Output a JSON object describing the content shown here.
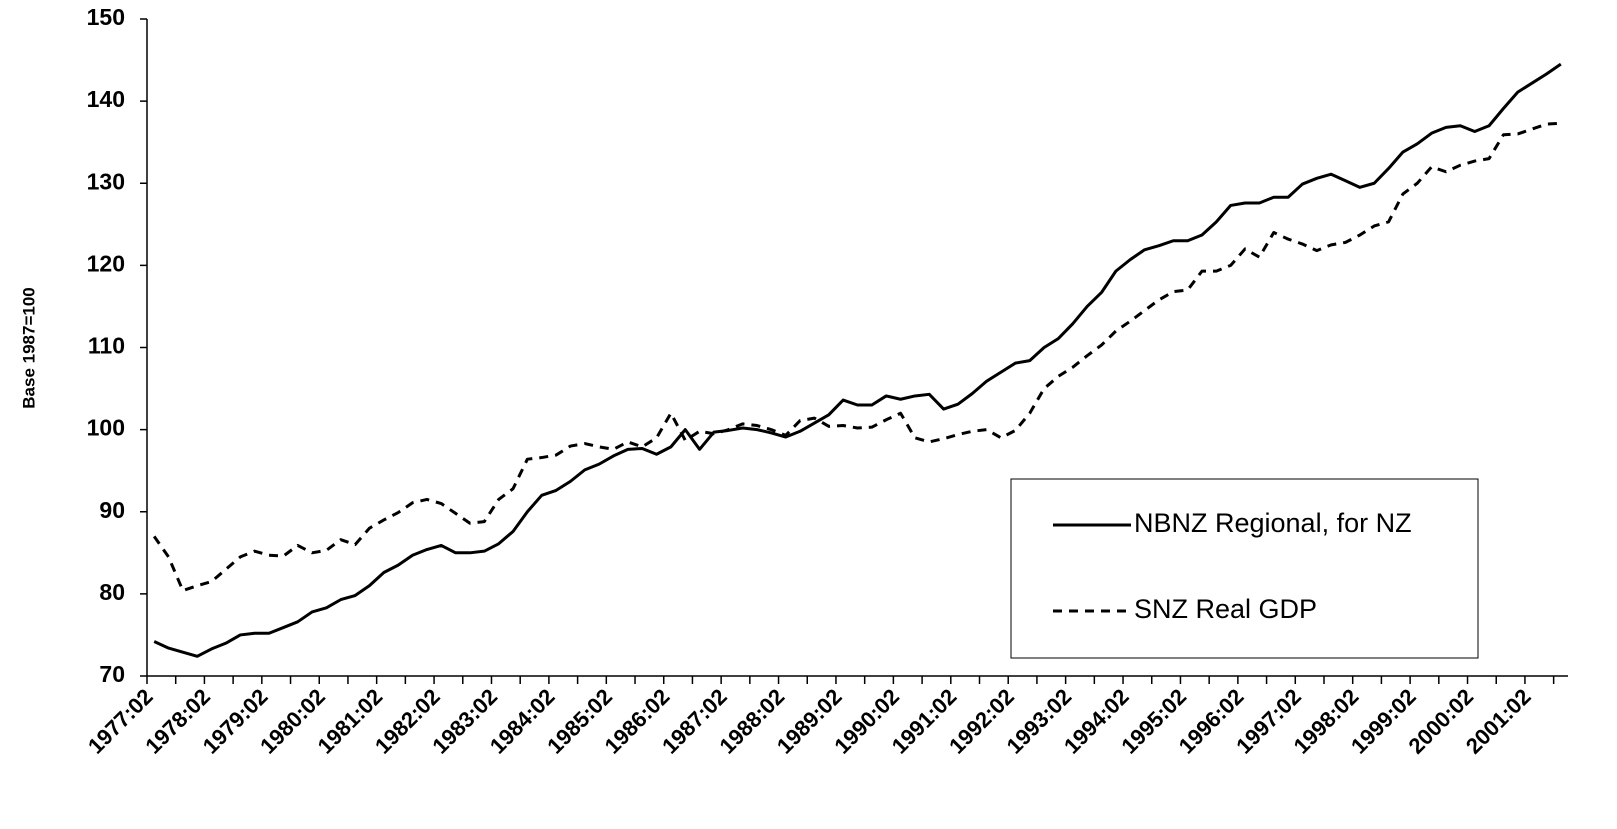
{
  "chart_data": {
    "type": "line",
    "y_label": "Base 1987=100",
    "categories": [
      "1977:02",
      null,
      null,
      null,
      "1978:02",
      null,
      null,
      null,
      "1979:02",
      null,
      null,
      null,
      "1980:02",
      null,
      null,
      null,
      "1981:02",
      null,
      null,
      null,
      "1982:02",
      null,
      null,
      null,
      "1983:02",
      null,
      null,
      null,
      "1984:02",
      null,
      null,
      null,
      "1985:02",
      null,
      null,
      null,
      "1986:02",
      null,
      null,
      null,
      "1987:02",
      null,
      null,
      null,
      "1988:02",
      null,
      null,
      null,
      "1989:02",
      null,
      null,
      null,
      "1990:02",
      null,
      null,
      null,
      "1991:02",
      null,
      null,
      null,
      "1992:02",
      null,
      null,
      null,
      "1993:02",
      null,
      null,
      null,
      "1994:02",
      null,
      null,
      null,
      "1995:02",
      null,
      null,
      null,
      "1996:02",
      null,
      null,
      null,
      "1997:02",
      null,
      null,
      null,
      "1998:02",
      null,
      null,
      null,
      "1999:02",
      null,
      null,
      null,
      "2000:02",
      null,
      null,
      null,
      "2001:02",
      null,
      null
    ],
    "series": [
      {
        "name": "NBNZ Regional, for NZ",
        "color": "#000000",
        "dash": false,
        "values": [
          74.2,
          73.4,
          72.9,
          72.4,
          73.3,
          74.0,
          75.0,
          75.2,
          75.2,
          75.9,
          76.6,
          77.8,
          78.3,
          79.3,
          79.8,
          81.0,
          82.6,
          83.5,
          84.7,
          85.4,
          85.9,
          85.0,
          85.0,
          85.2,
          86.1,
          87.6,
          90.0,
          92.0,
          92.6,
          93.7,
          95.1,
          95.8,
          96.8,
          97.6,
          97.7,
          97.0,
          97.9,
          100.0,
          97.6,
          99.7,
          99.9,
          100.2,
          100.0,
          99.6,
          99.1,
          99.8,
          100.8,
          101.8,
          103.6,
          103.0,
          103.0,
          104.1,
          103.7,
          104.1,
          104.3,
          102.5,
          103.1,
          104.4,
          105.9,
          107.0,
          108.1,
          108.4,
          110.0,
          111.1,
          112.9,
          115.0,
          116.7,
          119.3,
          120.7,
          121.9,
          122.4,
          123.0,
          123.0,
          123.7,
          125.3,
          127.3,
          127.6,
          127.6,
          128.3,
          128.3,
          129.9,
          130.6,
          131.1,
          130.3,
          129.5,
          130.0,
          131.8,
          133.8,
          134.8,
          136.1,
          136.8,
          137.0,
          136.3,
          137.0,
          139.1,
          141.1,
          142.2,
          143.3,
          144.5
        ]
      },
      {
        "name": "SNZ Real GDP",
        "color": "#000000",
        "dash": true,
        "values": [
          87.0,
          84.5,
          80.4,
          81.0,
          81.5,
          83.0,
          84.5,
          85.2,
          84.7,
          84.6,
          85.9,
          85.0,
          85.3,
          86.6,
          86.0,
          88.0,
          89.0,
          89.9,
          91.1,
          91.5,
          91.0,
          89.8,
          88.6,
          88.8,
          91.5,
          92.8,
          96.4,
          96.6,
          96.9,
          98.0,
          98.3,
          97.9,
          97.6,
          98.5,
          97.9,
          99.0,
          102.0,
          98.7,
          99.8,
          99.5,
          100.0,
          100.7,
          100.5,
          100.0,
          99.3,
          101.1,
          101.4,
          100.4,
          100.5,
          100.2,
          100.3,
          101.2,
          102.0,
          99.0,
          98.5,
          98.9,
          99.4,
          99.8,
          100.0,
          99.0,
          99.9,
          102.0,
          105.0,
          106.5,
          107.6,
          109.0,
          110.3,
          112.0,
          113.2,
          114.5,
          115.8,
          116.8,
          117.0,
          119.3,
          119.3,
          120.0,
          122.0,
          121.0,
          124.0,
          123.2,
          122.6,
          121.8,
          122.5,
          122.8,
          123.7,
          124.8,
          125.3,
          128.7,
          130.0,
          132.0,
          131.4,
          132.2,
          132.7,
          133.0,
          135.9,
          136.0,
          136.6,
          137.2,
          137.3
        ]
      }
    ],
    "ylim": [
      70,
      150
    ],
    "yticks": [
      70,
      80,
      90,
      100,
      110,
      120,
      130,
      140,
      150
    ],
    "grid": false,
    "legend": "lower right"
  }
}
